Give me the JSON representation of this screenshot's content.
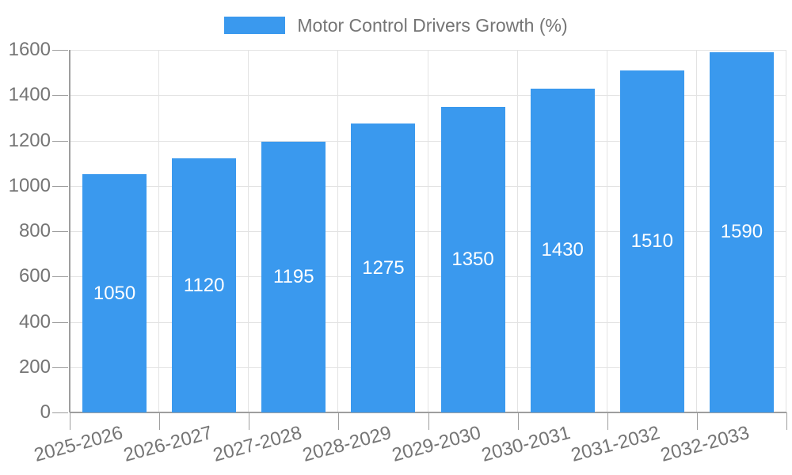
{
  "legend": {
    "label": "Motor Control Drivers Growth (%)"
  },
  "colors": {
    "bar": "#3a99ee",
    "value_label": "#ffffff",
    "axis_text": "#757575",
    "gridline": "#e3e3e3",
    "axis_line": "#9e9e9e",
    "background": "#ffffff"
  },
  "chart_data": {
    "type": "bar",
    "title": "Motor Control Drivers Growth (%)",
    "categories": [
      "2025-2026",
      "2026-2027",
      "2027-2028",
      "2028-2029",
      "2029-2030",
      "2030-2031",
      "2031-2032",
      "2032-2033"
    ],
    "values": [
      1050,
      1120,
      1195,
      1275,
      1350,
      1430,
      1510,
      1590
    ],
    "xlabel": "",
    "ylabel": "",
    "ylim": [
      0,
      1600
    ],
    "yticks": [
      0,
      200,
      400,
      600,
      800,
      1000,
      1200,
      1400,
      1600
    ],
    "grid": true,
    "legend_position": "top",
    "value_labels": "inside-center",
    "x_label_rotation_deg": -15
  }
}
